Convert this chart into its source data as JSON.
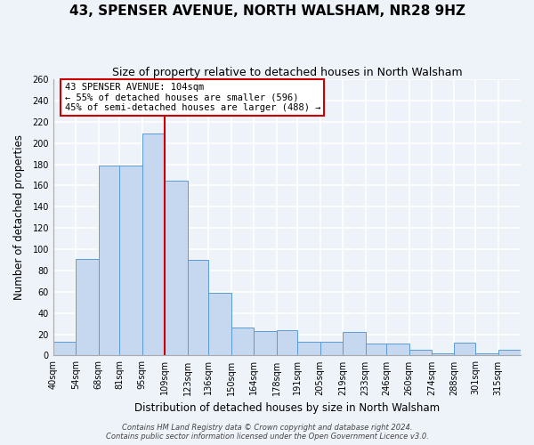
{
  "title": "43, SPENSER AVENUE, NORTH WALSHAM, NR28 9HZ",
  "subtitle": "Size of property relative to detached houses in North Walsham",
  "xlabel": "Distribution of detached houses by size in North Walsham",
  "ylabel": "Number of detached properties",
  "bar_labels": [
    "40sqm",
    "54sqm",
    "68sqm",
    "81sqm",
    "95sqm",
    "109sqm",
    "123sqm",
    "136sqm",
    "150sqm",
    "164sqm",
    "178sqm",
    "191sqm",
    "205sqm",
    "219sqm",
    "233sqm",
    "246sqm",
    "260sqm",
    "274sqm",
    "288sqm",
    "301sqm",
    "315sqm"
  ],
  "bar_values": [
    13,
    91,
    179,
    179,
    209,
    165,
    90,
    59,
    26,
    23,
    24,
    13,
    13,
    22,
    11,
    11,
    5,
    2,
    12,
    2,
    5
  ],
  "bar_edges": [
    40,
    54,
    68,
    81,
    95,
    109,
    123,
    136,
    150,
    164,
    178,
    191,
    205,
    219,
    233,
    246,
    260,
    274,
    288,
    301,
    315,
    329
  ],
  "bar_color": "#c5d8f0",
  "bar_edge_color": "#5b9bd5",
  "vline_x": 109,
  "vline_color": "#cc0000",
  "annotation_lines": [
    "43 SPENSER AVENUE: 104sqm",
    "← 55% of detached houses are smaller (596)",
    "45% of semi-detached houses are larger (488) →"
  ],
  "annotation_box_color": "#ffffff",
  "annotation_box_edge": "#cc0000",
  "ylim": [
    0,
    260
  ],
  "yticks": [
    0,
    20,
    40,
    60,
    80,
    100,
    120,
    140,
    160,
    180,
    200,
    220,
    240,
    260
  ],
  "footer_lines": [
    "Contains HM Land Registry data © Crown copyright and database right 2024.",
    "Contains public sector information licensed under the Open Government Licence v3.0."
  ],
  "bg_color": "#eef2f9",
  "grid_color": "#ffffff",
  "title_fontsize": 11,
  "subtitle_fontsize": 9,
  "axis_label_fontsize": 8.5,
  "tick_fontsize": 7,
  "annotation_fontsize": 7.5,
  "footer_fontsize": 6
}
